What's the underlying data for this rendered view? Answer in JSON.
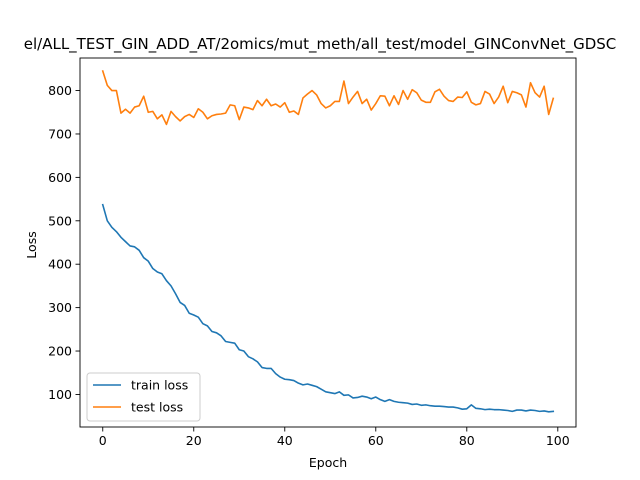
{
  "chart_data": {
    "type": "line",
    "title": "el/ALL_TEST_GIN_ADD_AT/2omics/mut_meth/all_test/model_GINConvNet_GDSC",
    "xlabel": "Epoch",
    "ylabel": "Loss",
    "xlim": [
      -5,
      104
    ],
    "ylim": [
      25,
      875
    ],
    "xticks": [
      0,
      20,
      40,
      60,
      80,
      100
    ],
    "yticks": [
      100,
      200,
      300,
      400,
      500,
      600,
      700,
      800
    ],
    "grid": false,
    "legend_position": "lower-left",
    "series": [
      {
        "name": "train loss",
        "color": "#1f77b4",
        "values": [
          537,
          500,
          485,
          475,
          462,
          452,
          442,
          440,
          432,
          415,
          407,
          390,
          382,
          378,
          362,
          350,
          332,
          312,
          305,
          287,
          283,
          278,
          263,
          258,
          245,
          242,
          235,
          222,
          220,
          218,
          203,
          200,
          187,
          182,
          175,
          162,
          160,
          160,
          148,
          140,
          135,
          134,
          132,
          126,
          122,
          124,
          121,
          118,
          112,
          106,
          104,
          102,
          106,
          98,
          99,
          92,
          93,
          96,
          94,
          90,
          94,
          88,
          84,
          88,
          84,
          82,
          81,
          80,
          77,
          78,
          75,
          76,
          74,
          73,
          73,
          72,
          71,
          71,
          69,
          66,
          67,
          76,
          68,
          67,
          65,
          66,
          65,
          65,
          64,
          63,
          61,
          64,
          64,
          62,
          64,
          63,
          61,
          62,
          60,
          61
        ]
      },
      {
        "name": "test loss",
        "color": "#ff7f0e",
        "values": [
          845,
          812,
          800,
          800,
          748,
          757,
          748,
          762,
          765,
          787,
          750,
          752,
          735,
          744,
          722,
          752,
          740,
          730,
          740,
          745,
          738,
          758,
          750,
          735,
          742,
          745,
          746,
          748,
          767,
          765,
          733,
          762,
          760,
          756,
          777,
          765,
          780,
          765,
          769,
          762,
          772,
          750,
          753,
          745,
          783,
          792,
          800,
          790,
          770,
          760,
          765,
          775,
          775,
          822,
          770,
          785,
          798,
          770,
          780,
          755,
          770,
          788,
          787,
          765,
          788,
          768,
          800,
          780,
          802,
          795,
          778,
          773,
          773,
          797,
          803,
          787,
          777,
          775,
          785,
          784,
          797,
          773,
          767,
          770,
          798,
          792,
          770,
          785,
          810,
          772,
          798,
          795,
          790,
          762,
          818,
          795,
          785,
          810,
          745,
          782
        ]
      }
    ]
  }
}
